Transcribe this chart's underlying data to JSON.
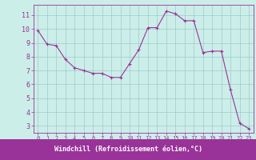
{
  "x": [
    0,
    1,
    2,
    3,
    4,
    5,
    6,
    7,
    8,
    9,
    10,
    11,
    12,
    13,
    14,
    15,
    16,
    17,
    18,
    19,
    20,
    21,
    22,
    23
  ],
  "y": [
    9.9,
    8.9,
    8.8,
    7.8,
    7.2,
    7.0,
    6.8,
    6.8,
    6.5,
    6.5,
    7.5,
    8.5,
    10.1,
    10.1,
    11.3,
    11.1,
    10.6,
    10.6,
    8.3,
    8.4,
    8.4,
    5.6,
    3.2,
    2.8
  ],
  "line_color": "#993399",
  "marker": "+",
  "marker_size": 3,
  "marker_lw": 0.8,
  "line_width": 0.8,
  "bg_color": "#cceee8",
  "plot_bg": "#cceee8",
  "grid_color": "#99cccc",
  "xlabel": "Windchill (Refroidissement éolien,°C)",
  "xlabel_color": "#ffffff",
  "xlabel_bg": "#993399",
  "ylim": [
    2.5,
    11.75
  ],
  "xlim": [
    -0.5,
    23.5
  ],
  "yticks": [
    3,
    4,
    5,
    6,
    7,
    8,
    9,
    10,
    11
  ],
  "xticks": [
    0,
    1,
    2,
    3,
    4,
    5,
    6,
    7,
    8,
    9,
    10,
    11,
    12,
    13,
    14,
    15,
    16,
    17,
    18,
    19,
    20,
    21,
    22,
    23
  ],
  "tick_label_color": "#993399",
  "spine_color": "#993399",
  "tick_fontsize": 5,
  "ytick_fontsize": 6,
  "xlabel_fontsize": 6
}
